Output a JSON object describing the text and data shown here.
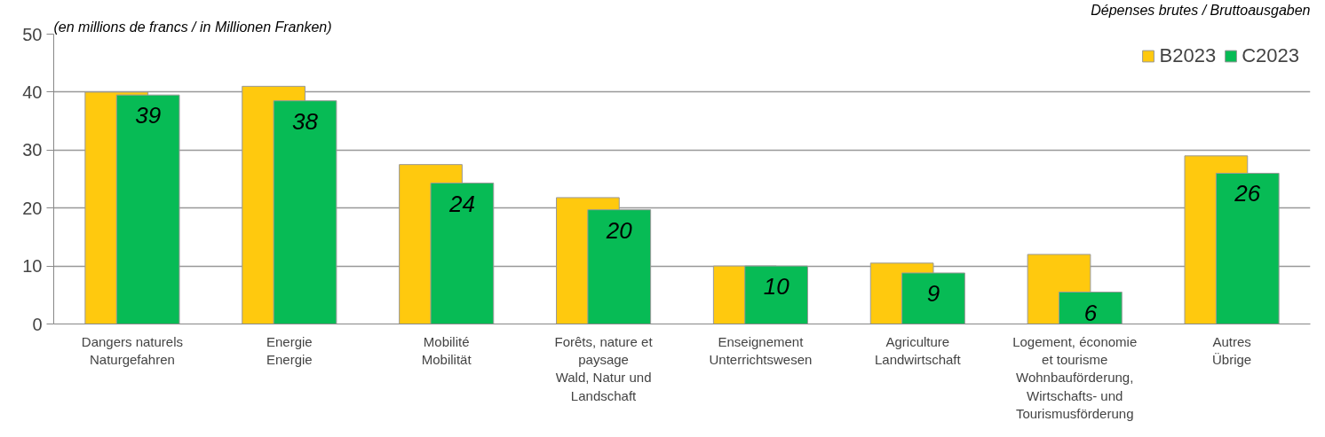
{
  "chart_data": {
    "type": "bar",
    "title": "Dépenses brutes / Bruttoausgaben",
    "subtitle": "(en millions de francs / in Millionen Franken)",
    "categories": [
      "Dangers naturels\nNaturgefahren",
      "Energie\nEnergie",
      "Mobilité\nMobilität",
      "Forêts, nature et\npaysage\nWald, Natur und\nLandschaft",
      "Enseignement\nUnterrichtswesen",
      "Agriculture\nLandwirtschaft",
      "Logement, économie\net tourisme\nWohnbauförderung,\nWirtschafts- und\nTourismusförderung",
      "Autres\nÜbrige"
    ],
    "series": [
      {
        "name": "B2023",
        "color": "#ffc90e",
        "values": [
          40,
          41,
          27.5,
          21.8,
          10,
          10.5,
          12,
          29
        ]
      },
      {
        "name": "C2023",
        "color": "#07bb55",
        "values": [
          39.5,
          38.5,
          24.3,
          19.7,
          10,
          8.8,
          5.5,
          26
        ],
        "value_labels": [
          "39",
          "38",
          "24",
          "20",
          "10",
          "9",
          "6",
          "26"
        ]
      }
    ],
    "ylim": [
      0,
      50
    ],
    "yticks": [
      0,
      10,
      20,
      30,
      40,
      50
    ],
    "grid": "y",
    "legend": "top right"
  }
}
